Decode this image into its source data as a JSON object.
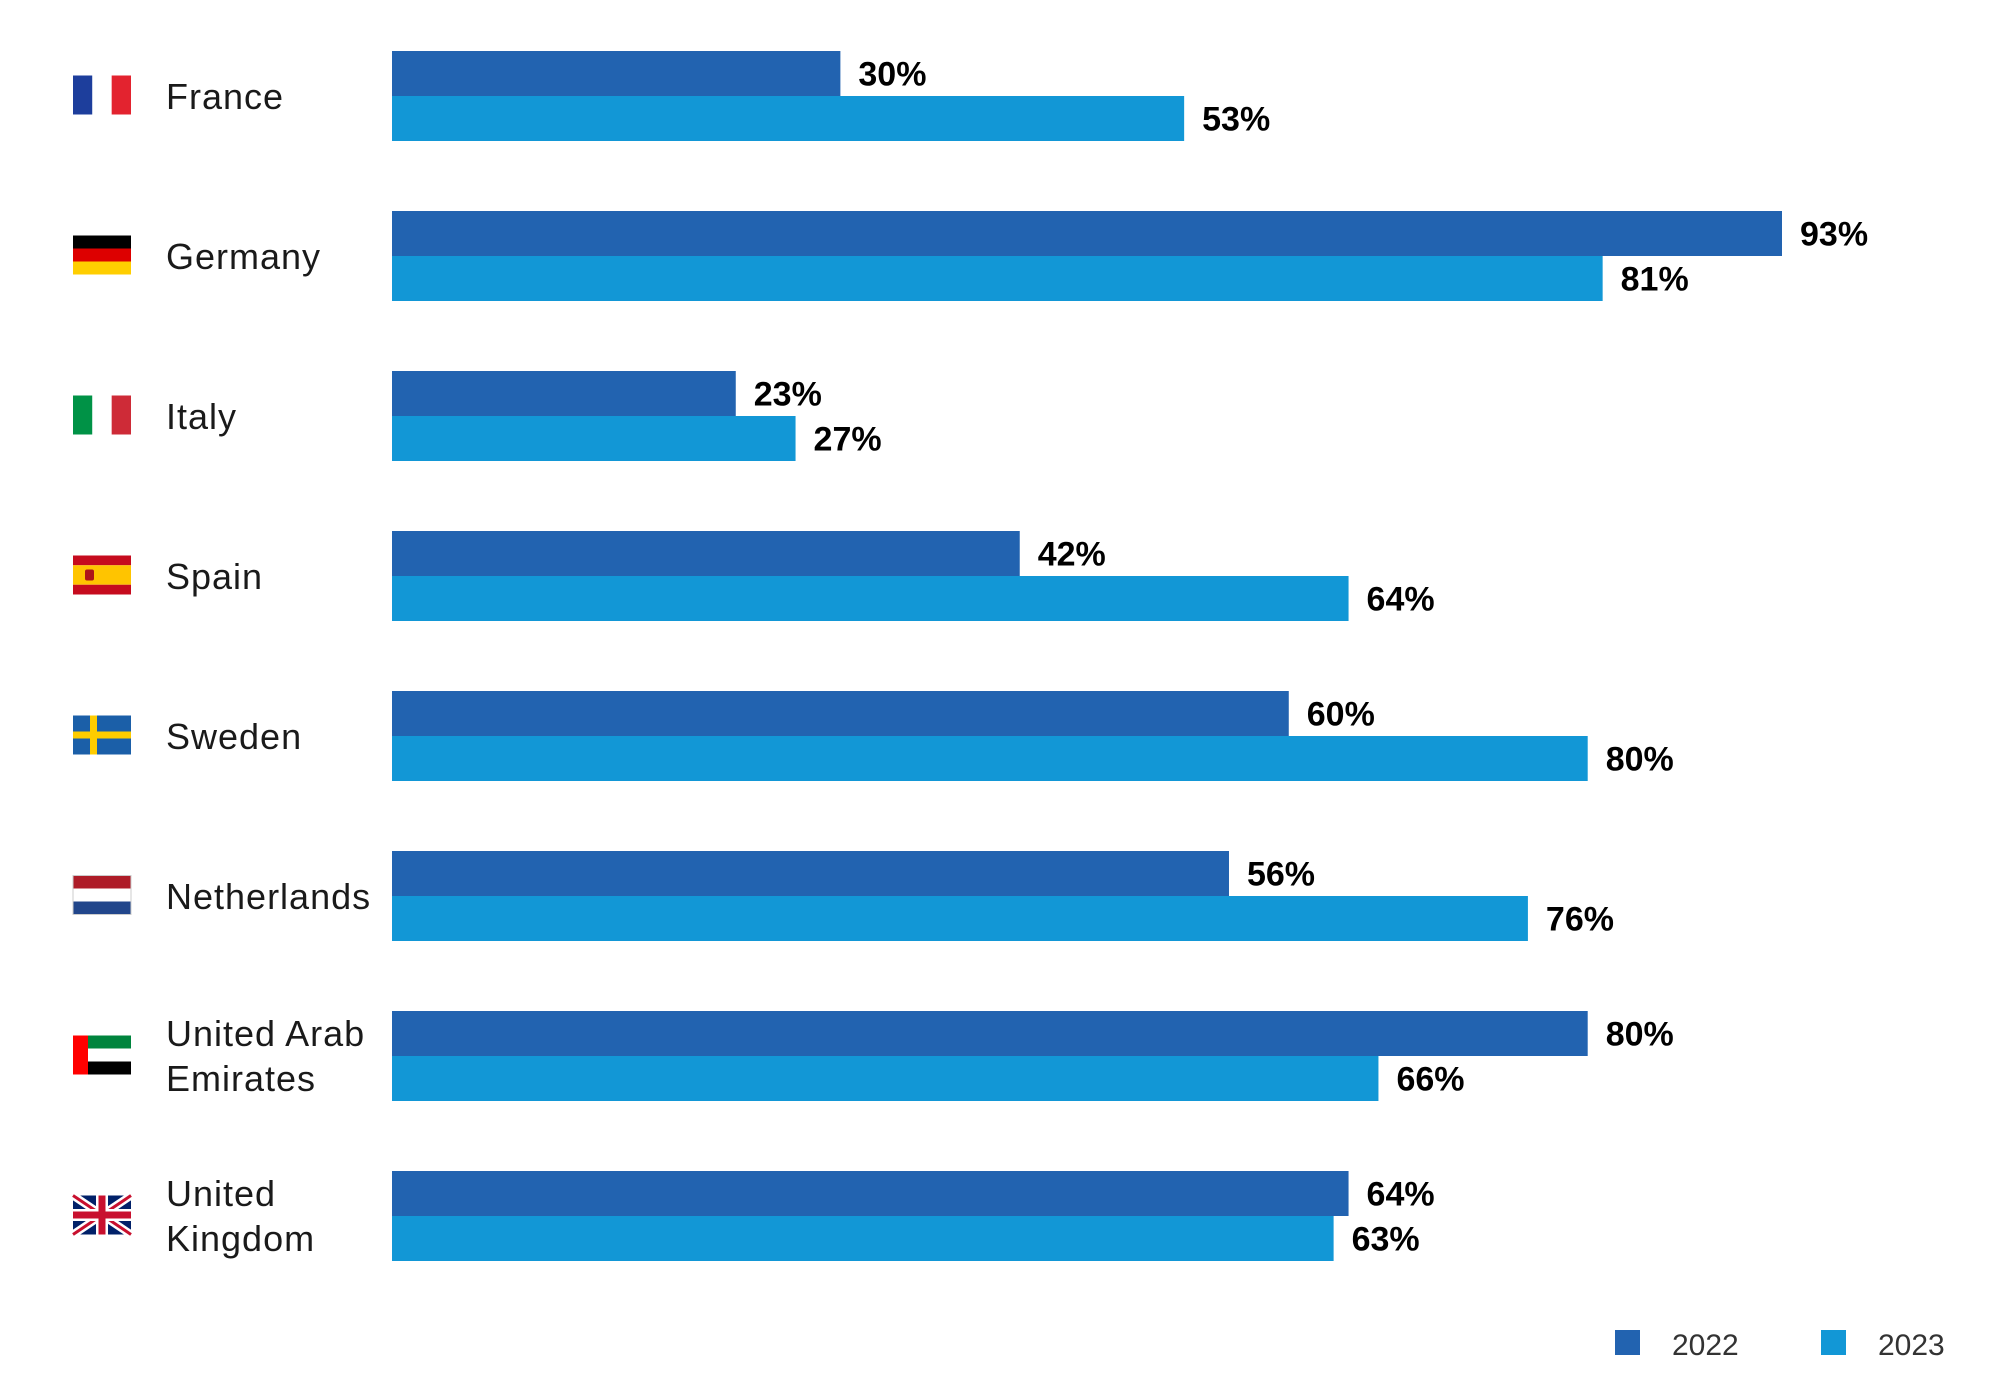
{
  "chart_data": {
    "type": "bar",
    "orientation": "horizontal",
    "categories": [
      {
        "name": "France",
        "lines": [
          "France"
        ],
        "flag": "france-flag"
      },
      {
        "name": "Germany",
        "lines": [
          "Germany"
        ],
        "flag": "germany-flag"
      },
      {
        "name": "Italy",
        "lines": [
          "Italy"
        ],
        "flag": "italy-flag"
      },
      {
        "name": "Spain",
        "lines": [
          "Spain"
        ],
        "flag": "spain-flag"
      },
      {
        "name": "Sweden",
        "lines": [
          "Sweden"
        ],
        "flag": "sweden-flag"
      },
      {
        "name": "Netherlands",
        "lines": [
          "Netherlands"
        ],
        "flag": "netherlands-flag"
      },
      {
        "name": "United Arab Emirates",
        "lines": [
          "United Arab",
          "Emirates"
        ],
        "flag": "uae-flag"
      },
      {
        "name": "United Kingdom",
        "lines": [
          "United",
          "Kingdom"
        ],
        "flag": "uk-flag"
      }
    ],
    "series": [
      {
        "name": "2022",
        "color": "#2263b0",
        "values": [
          30,
          93,
          23,
          42,
          60,
          56,
          80,
          64
        ]
      },
      {
        "name": "2023",
        "color": "#1297d6",
        "values": [
          53,
          81,
          27,
          64,
          80,
          76,
          66,
          63
        ]
      }
    ],
    "value_suffix": "%",
    "xlim": [
      0,
      100
    ],
    "grid": false,
    "legend_position": "bottom-right"
  }
}
